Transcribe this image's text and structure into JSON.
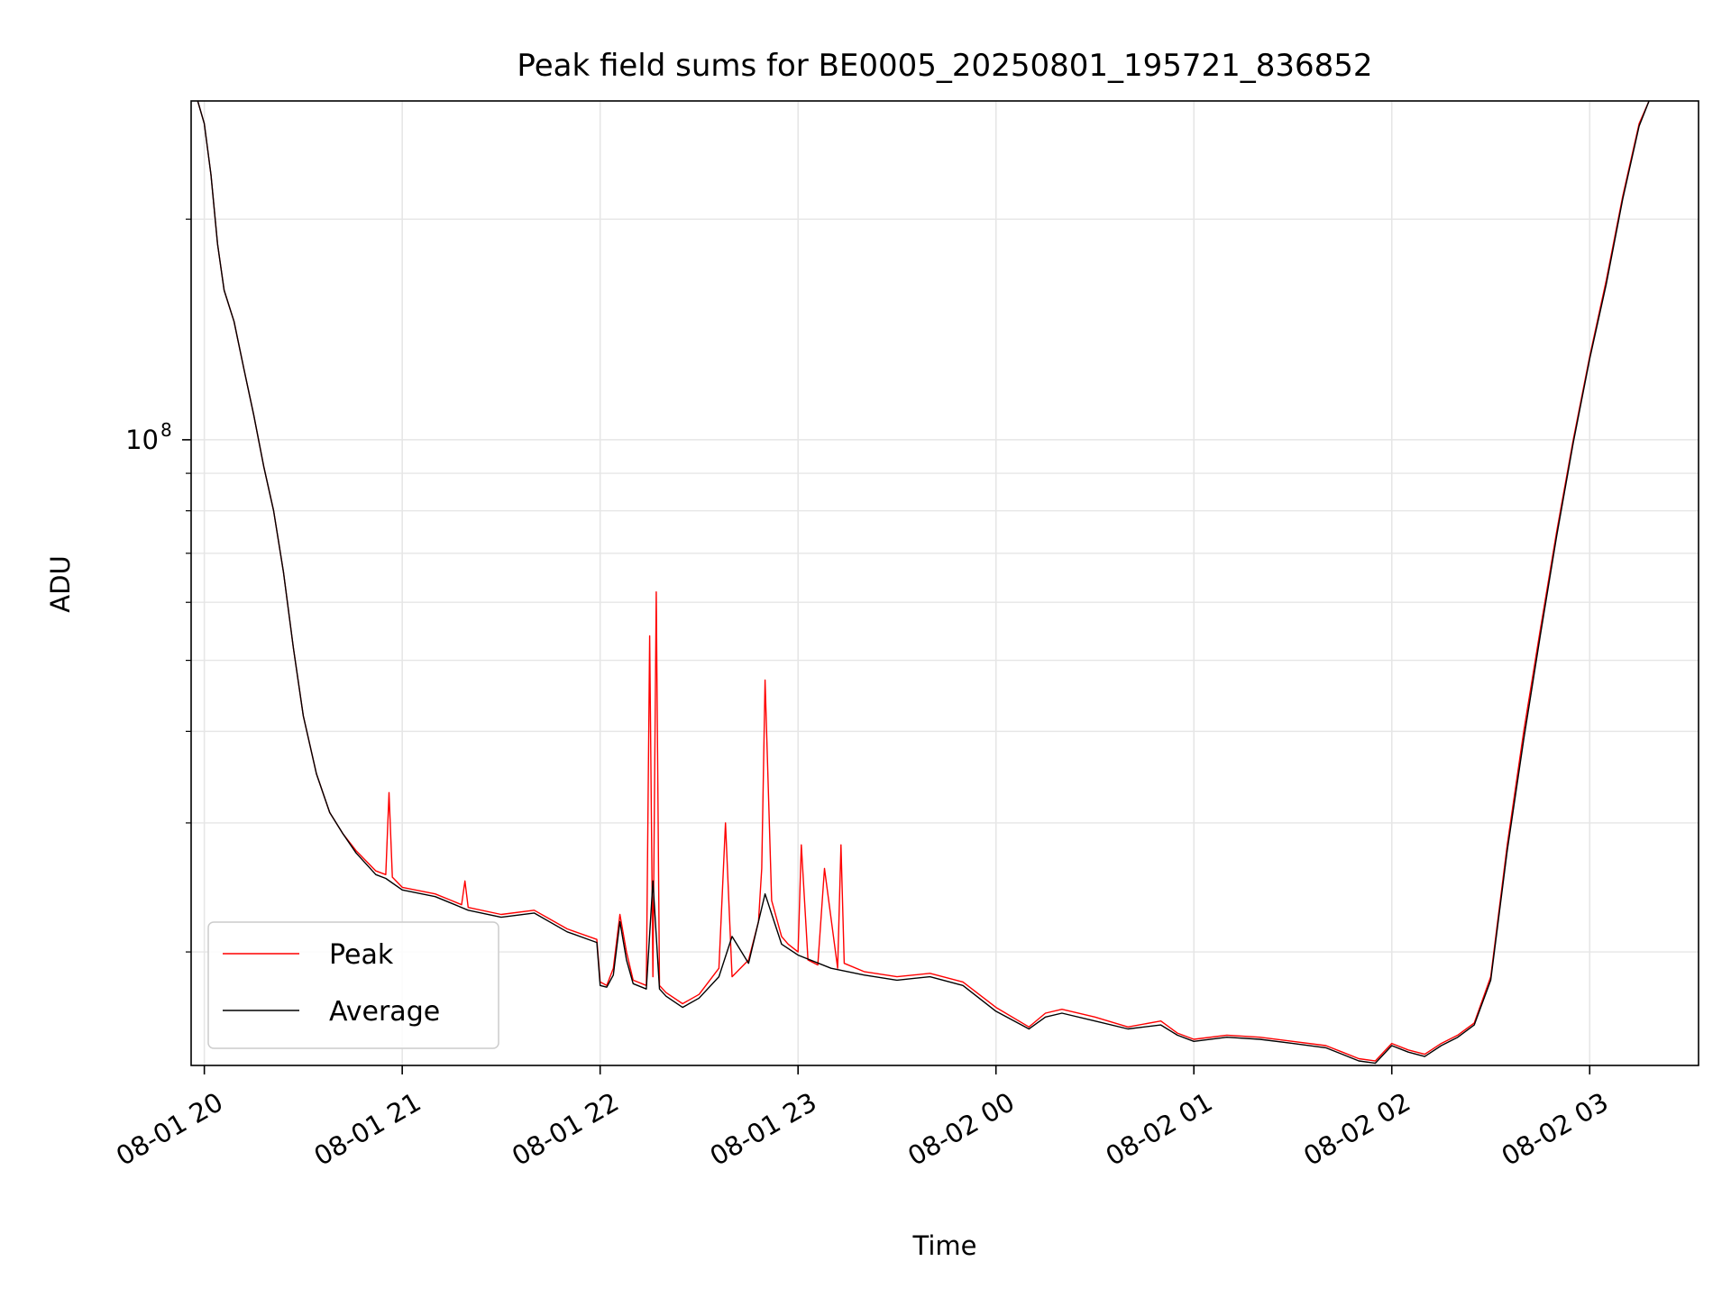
{
  "chart_data": {
    "type": "line",
    "title": "Peak field sums for BE0005_20250801_195721_836852",
    "xlabel": "Time",
    "ylabel": "ADU",
    "yscale": "log",
    "ylim": [
      14000000,
      290000000
    ],
    "xlim": [
      "2025-08-01 19:56",
      "2025-08-02 03:33"
    ],
    "grid": true,
    "legend_position": "lower-left",
    "x_ticks": [
      {
        "x": "2025-08-01 20:00",
        "label": "08-01 20"
      },
      {
        "x": "2025-08-01 21:00",
        "label": "08-01 21"
      },
      {
        "x": "2025-08-01 22:00",
        "label": "08-01 22"
      },
      {
        "x": "2025-08-01 23:00",
        "label": "08-01 23"
      },
      {
        "x": "2025-08-02 00:00",
        "label": "08-02 00"
      },
      {
        "x": "2025-08-02 01:00",
        "label": "08-02 01"
      },
      {
        "x": "2025-08-02 02:00",
        "label": "08-02 02"
      },
      {
        "x": "2025-08-02 03:00",
        "label": "08-02 03"
      }
    ],
    "y_tick_major": {
      "value": 100000000,
      "base": "10",
      "exponent": "8"
    },
    "y_minor_ticks": [
      20000000,
      30000000,
      40000000,
      50000000,
      60000000,
      70000000,
      80000000,
      90000000,
      200000000
    ],
    "series": [
      {
        "name": "Peak",
        "color": "#ff0000",
        "x": [
          "2025-08-01 19:58",
          "2025-08-01 20:00",
          "2025-08-01 20:02",
          "2025-08-01 20:04",
          "2025-08-01 20:06",
          "2025-08-01 20:09",
          "2025-08-01 20:12",
          "2025-08-01 20:15",
          "2025-08-01 20:18",
          "2025-08-01 20:21",
          "2025-08-01 20:24",
          "2025-08-01 20:27",
          "2025-08-01 20:30",
          "2025-08-01 20:34",
          "2025-08-01 20:38",
          "2025-08-01 20:42",
          "2025-08-01 20:46",
          "2025-08-01 20:52",
          "2025-08-01 20:55",
          "2025-08-01 20:56",
          "2025-08-01 20:57",
          "2025-08-01 21:00",
          "2025-08-01 21:10",
          "2025-08-01 21:15",
          "2025-08-01 21:18",
          "2025-08-01 21:19",
          "2025-08-01 21:20",
          "2025-08-01 21:30",
          "2025-08-01 21:40",
          "2025-08-01 21:50",
          "2025-08-01 21:59",
          "2025-08-01 22:00",
          "2025-08-01 22:02",
          "2025-08-01 22:04",
          "2025-08-01 22:06",
          "2025-08-01 22:08",
          "2025-08-01 22:10",
          "2025-08-01 22:14",
          "2025-08-01 22:15",
          "2025-08-01 22:16",
          "2025-08-01 22:17",
          "2025-08-01 22:18",
          "2025-08-01 22:20",
          "2025-08-01 22:25",
          "2025-08-01 22:30",
          "2025-08-01 22:36",
          "2025-08-01 22:38",
          "2025-08-01 22:40",
          "2025-08-01 22:45",
          "2025-08-01 22:48",
          "2025-08-01 22:49",
          "2025-08-01 22:50",
          "2025-08-01 22:52",
          "2025-08-01 22:55",
          "2025-08-01 22:57",
          "2025-08-01 23:00",
          "2025-08-01 23:01",
          "2025-08-01 23:03",
          "2025-08-01 23:06",
          "2025-08-01 23:08",
          "2025-08-01 23:12",
          "2025-08-01 23:13",
          "2025-08-01 23:14",
          "2025-08-01 23:20",
          "2025-08-01 23:30",
          "2025-08-01 23:40",
          "2025-08-01 23:50",
          "2025-08-02 00:00",
          "2025-08-02 00:10",
          "2025-08-02 00:15",
          "2025-08-02 00:20",
          "2025-08-02 00:30",
          "2025-08-02 00:40",
          "2025-08-02 00:50",
          "2025-08-02 00:55",
          "2025-08-02 01:00",
          "2025-08-02 01:10",
          "2025-08-02 01:20",
          "2025-08-02 01:30",
          "2025-08-02 01:40",
          "2025-08-02 01:45",
          "2025-08-02 01:50",
          "2025-08-02 01:55",
          "2025-08-02 02:00",
          "2025-08-02 02:05",
          "2025-08-02 02:10",
          "2025-08-02 02:15",
          "2025-08-02 02:20",
          "2025-08-02 02:25",
          "2025-08-02 02:30",
          "2025-08-02 02:35",
          "2025-08-02 02:40",
          "2025-08-02 02:45",
          "2025-08-02 02:50",
          "2025-08-02 02:55",
          "2025-08-02 03:00",
          "2025-08-02 03:05",
          "2025-08-02 03:10",
          "2025-08-02 03:15",
          "2025-08-02 03:18"
        ],
        "values": [
          290000000,
          270000000,
          230000000,
          185000000,
          160000000,
          145000000,
          125000000,
          108000000,
          92000000,
          80000000,
          66000000,
          52000000,
          42000000,
          35000000,
          31000000,
          29000000,
          27500000,
          25800000,
          25500000,
          33000000,
          25300000,
          24500000,
          24000000,
          23500000,
          23200000,
          25000000,
          23000000,
          22500000,
          22800000,
          21500000,
          20800000,
          18200000,
          18000000,
          19000000,
          22500000,
          20000000,
          18300000,
          18000000,
          54000000,
          18500000,
          62000000,
          18000000,
          17600000,
          17000000,
          17500000,
          19000000,
          30000000,
          18500000,
          19500000,
          22000000,
          26000000,
          47000000,
          23500000,
          21000000,
          20500000,
          20000000,
          28000000,
          19500000,
          19200000,
          26000000,
          19000000,
          28000000,
          19300000,
          18800000,
          18500000,
          18700000,
          18200000,
          16800000,
          15800000,
          16500000,
          16700000,
          16300000,
          15800000,
          16100000,
          15500000,
          15200000,
          15400000,
          15300000,
          15100000,
          14900000,
          14600000,
          14300000,
          14200000,
          15000000,
          14700000,
          14500000,
          15000000,
          15400000,
          16000000,
          18500000,
          28000000,
          40000000,
          55000000,
          75000000,
          100000000,
          130000000,
          165000000,
          215000000,
          270000000,
          290000000
        ]
      },
      {
        "name": "Average",
        "color": "#000000",
        "x": [
          "2025-08-01 19:58",
          "2025-08-01 20:00",
          "2025-08-01 20:02",
          "2025-08-01 20:04",
          "2025-08-01 20:06",
          "2025-08-01 20:09",
          "2025-08-01 20:12",
          "2025-08-01 20:15",
          "2025-08-01 20:18",
          "2025-08-01 20:21",
          "2025-08-01 20:24",
          "2025-08-01 20:27",
          "2025-08-01 20:30",
          "2025-08-01 20:34",
          "2025-08-01 20:38",
          "2025-08-01 20:42",
          "2025-08-01 20:46",
          "2025-08-01 20:52",
          "2025-08-01 20:55",
          "2025-08-01 21:00",
          "2025-08-01 21:10",
          "2025-08-01 21:15",
          "2025-08-01 21:20",
          "2025-08-01 21:30",
          "2025-08-01 21:40",
          "2025-08-01 21:50",
          "2025-08-01 21:59",
          "2025-08-01 22:00",
          "2025-08-01 22:02",
          "2025-08-01 22:04",
          "2025-08-01 22:06",
          "2025-08-01 22:08",
          "2025-08-01 22:10",
          "2025-08-01 22:14",
          "2025-08-01 22:16",
          "2025-08-01 22:18",
          "2025-08-01 22:20",
          "2025-08-01 22:25",
          "2025-08-01 22:30",
          "2025-08-01 22:36",
          "2025-08-01 22:40",
          "2025-08-01 22:45",
          "2025-08-01 22:50",
          "2025-08-01 22:55",
          "2025-08-01 23:00",
          "2025-08-01 23:10",
          "2025-08-01 23:20",
          "2025-08-01 23:30",
          "2025-08-01 23:40",
          "2025-08-01 23:50",
          "2025-08-02 00:00",
          "2025-08-02 00:10",
          "2025-08-02 00:15",
          "2025-08-02 00:20",
          "2025-08-02 00:30",
          "2025-08-02 00:40",
          "2025-08-02 00:50",
          "2025-08-02 00:55",
          "2025-08-02 01:00",
          "2025-08-02 01:10",
          "2025-08-02 01:20",
          "2025-08-02 01:30",
          "2025-08-02 01:40",
          "2025-08-02 01:45",
          "2025-08-02 01:50",
          "2025-08-02 01:55",
          "2025-08-02 02:00",
          "2025-08-02 02:05",
          "2025-08-02 02:10",
          "2025-08-02 02:15",
          "2025-08-02 02:20",
          "2025-08-02 02:25",
          "2025-08-02 02:30",
          "2025-08-02 02:35",
          "2025-08-02 02:40",
          "2025-08-02 02:45",
          "2025-08-02 02:50",
          "2025-08-02 02:55",
          "2025-08-02 03:00",
          "2025-08-02 03:05",
          "2025-08-02 03:10",
          "2025-08-02 03:15",
          "2025-08-02 03:18"
        ],
        "values": [
          290000000,
          270000000,
          230000000,
          185000000,
          160000000,
          145000000,
          125000000,
          108000000,
          92000000,
          80000000,
          66000000,
          52000000,
          42000000,
          35000000,
          31000000,
          29000000,
          27300000,
          25500000,
          25200000,
          24300000,
          23800000,
          23300000,
          22800000,
          22300000,
          22600000,
          21300000,
          20600000,
          18000000,
          17900000,
          18600000,
          22000000,
          19500000,
          18100000,
          17800000,
          25000000,
          17800000,
          17400000,
          16800000,
          17300000,
          18500000,
          21000000,
          19300000,
          24000000,
          20500000,
          19800000,
          19000000,
          18600000,
          18300000,
          18500000,
          18000000,
          16600000,
          15700000,
          16300000,
          16500000,
          16100000,
          15700000,
          15900000,
          15400000,
          15100000,
          15300000,
          15200000,
          15000000,
          14800000,
          14500000,
          14200000,
          14100000,
          14900000,
          14600000,
          14400000,
          14900000,
          15300000,
          15900000,
          18300000,
          27500000,
          39000000,
          54000000,
          74000000,
          99000000,
          129000000,
          163000000,
          213000000,
          268000000,
          290000000
        ]
      }
    ]
  }
}
